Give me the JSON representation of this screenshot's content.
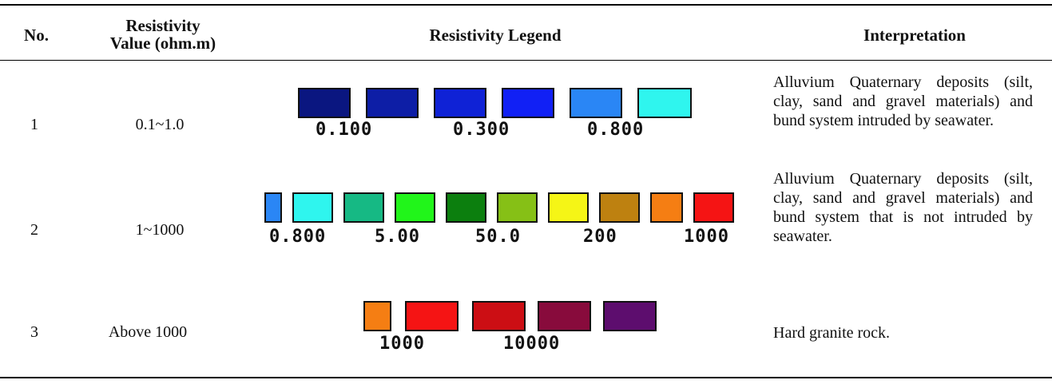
{
  "headers": {
    "no": "No.",
    "value_line1": "Resistivity",
    "value_line2": "Value (ohm.m)",
    "legend": "Resistivity Legend",
    "interpretation": "Interpretation"
  },
  "rows": [
    {
      "no": "1",
      "value": "0.1~1.0",
      "interpretation": "Alluvium Quaternary deposits (silt, clay, sand and gravel materials) and bund system intruded by seawater.",
      "swatches": [
        "#0a1680",
        "#0d1ea6",
        "#0f22d6",
        "#1120f5",
        "#2a86f5",
        "#2ff5ee"
      ],
      "ticks": [
        "0.100",
        "0.300",
        "0.800"
      ]
    },
    {
      "no": "2",
      "value": "1~1000",
      "interpretation": "Alluvium Quaternary deposits (silt, clay, sand and gravel materials) and bund system that is not intruded by seawater.",
      "swatches": [
        "#2a86f5",
        "#2ff5ee",
        "#16b984",
        "#21f51a",
        "#0c7f0e",
        "#86c016",
        "#f5f516",
        "#be8110",
        "#f57e13",
        "#f51414"
      ],
      "ticks": [
        "0.800",
        "5.00",
        "50.0",
        "200",
        "1000"
      ]
    },
    {
      "no": "3",
      "value": "Above 1000",
      "interpretation": "Hard granite rock.",
      "swatches": [
        "#f57e13",
        "#f51414",
        "#cc0e14",
        "#880b3c",
        "#5d0d6e"
      ],
      "ticks": [
        "1000",
        "10000"
      ]
    }
  ]
}
